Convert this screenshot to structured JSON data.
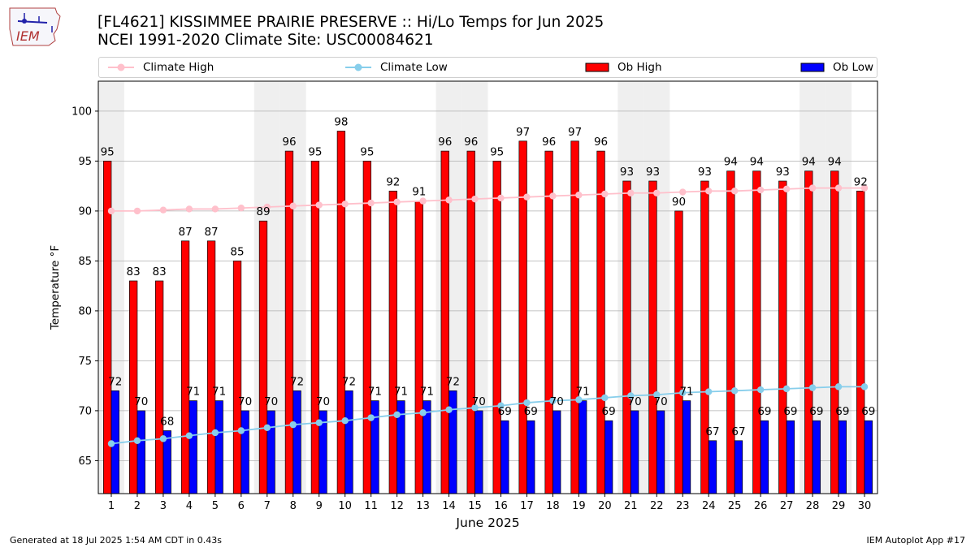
{
  "header": {
    "title_line1": "[FL4621] KISSIMMEE PRAIRIE PRESERVE :: Hi/Lo Temps for Jun 2025",
    "title_line2": "NCEI 1991-2020 Climate Site: USC00084621",
    "logo_text": "IEM"
  },
  "legend": {
    "items": [
      {
        "label": "Climate High",
        "color": "#ffc0cb",
        "kind": "line"
      },
      {
        "label": "Climate Low",
        "color": "#87ceeb",
        "kind": "line"
      },
      {
        "label": "Ob High",
        "color": "#ff0000",
        "kind": "bar"
      },
      {
        "label": "Ob Low",
        "color": "#0000ff",
        "kind": "bar"
      }
    ]
  },
  "footer": {
    "generated": "Generated at 18 Jul 2025 1:54 AM CDT in 0.43s",
    "app": "IEM Autoplot App #17"
  },
  "chart_data": {
    "type": "bar",
    "xlabel": "June 2025",
    "ylabel": "Temperature °F",
    "ylim": [
      61.7,
      103
    ],
    "yticks": [
      65,
      70,
      75,
      80,
      85,
      90,
      95,
      100
    ],
    "grid": true,
    "weekend_shading": true,
    "shaded_days": [
      1,
      7,
      8,
      14,
      15,
      21,
      22,
      28,
      29
    ],
    "categories": [
      "1",
      "2",
      "3",
      "4",
      "5",
      "6",
      "7",
      "8",
      "9",
      "10",
      "11",
      "12",
      "13",
      "14",
      "15",
      "16",
      "17",
      "18",
      "19",
      "20",
      "21",
      "22",
      "23",
      "24",
      "25",
      "26",
      "27",
      "28",
      "29",
      "30"
    ],
    "series": [
      {
        "name": "Ob High",
        "kind": "bar",
        "color": "#ff0000",
        "values": [
          95,
          83,
          83,
          87,
          87,
          85,
          89,
          96,
          95,
          98,
          95,
          92,
          91,
          96,
          96,
          95,
          97,
          96,
          97,
          96,
          93,
          93,
          90,
          93,
          94,
          94,
          93,
          94,
          94,
          92
        ]
      },
      {
        "name": "Ob Low",
        "kind": "bar",
        "color": "#0000ff",
        "values": [
          72,
          70,
          68,
          71,
          71,
          70,
          70,
          72,
          70,
          72,
          71,
          71,
          71,
          72,
          70,
          69,
          69,
          70,
          71,
          69,
          70,
          70,
          71,
          67,
          67,
          69,
          69,
          69,
          69,
          69
        ]
      },
      {
        "name": "Climate High",
        "kind": "line",
        "color": "#ffc0cb",
        "values": [
          90.0,
          90.0,
          90.1,
          90.2,
          90.2,
          90.3,
          90.4,
          90.5,
          90.6,
          90.7,
          90.8,
          90.9,
          91.0,
          91.1,
          91.2,
          91.3,
          91.4,
          91.5,
          91.6,
          91.7,
          91.8,
          91.8,
          91.9,
          92.0,
          92.0,
          92.1,
          92.2,
          92.3,
          92.3,
          92.3
        ]
      },
      {
        "name": "Climate Low",
        "kind": "line",
        "color": "#87ceeb",
        "values": [
          66.7,
          67.0,
          67.2,
          67.5,
          67.8,
          68.0,
          68.3,
          68.6,
          68.8,
          69.0,
          69.3,
          69.6,
          69.8,
          70.1,
          70.3,
          70.5,
          70.8,
          71.0,
          71.1,
          71.3,
          71.5,
          71.6,
          71.8,
          71.9,
          72.0,
          72.1,
          72.2,
          72.3,
          72.4,
          72.4
        ]
      }
    ]
  }
}
